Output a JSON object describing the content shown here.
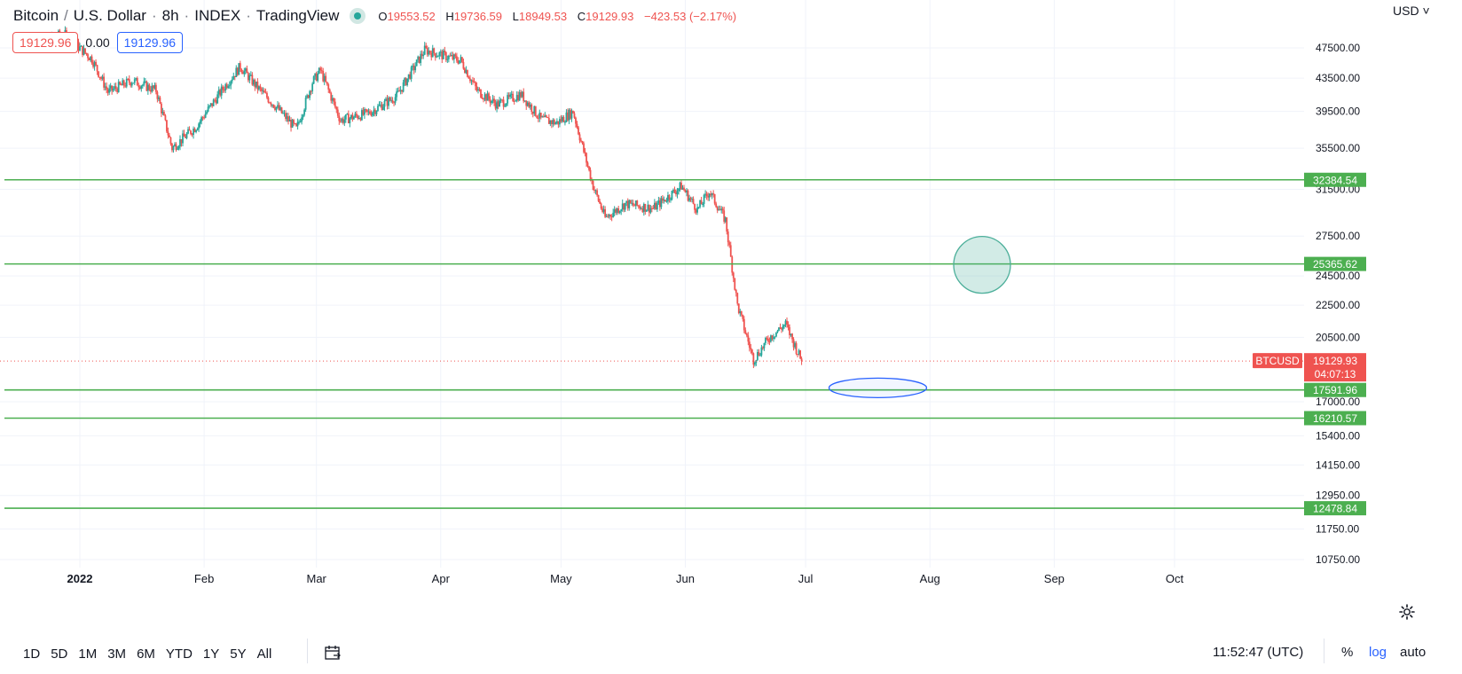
{
  "header": {
    "symbol": "Bitcoin",
    "quote": "U.S. Dollar",
    "interval": "8h",
    "exchange": "INDEX",
    "source": "TradingView",
    "open": "19553.52",
    "high": "19736.59",
    "low": "18949.53",
    "close": "19129.93",
    "change": "−423.53 (−2.17%)"
  },
  "trade": {
    "sell": "19129.96",
    "spread": "0.00",
    "buy": "19129.96"
  },
  "currency": "USD",
  "ticker": {
    "symbol": "BTCUSD",
    "price": "19129.93",
    "countdown": "04:07:13"
  },
  "colors": {
    "up": "#26a69a",
    "down": "#ef5350",
    "hline": "#4caf50",
    "ellipse": "#2962ff",
    "circle": "#4caf9a"
  },
  "ranges": [
    "1D",
    "5D",
    "1M",
    "3M",
    "6M",
    "YTD",
    "1Y",
    "5Y",
    "All"
  ],
  "clock": "11:52:47 (UTC)",
  "scale_buttons": {
    "percent": "%",
    "log": "log",
    "auto": "auto"
  },
  "icons": {
    "calendar": "calendar-goto-icon",
    "settings": "gear-icon"
  },
  "chart_data": {
    "type": "candlestick",
    "scale": "log",
    "y_ticks": [
      47500,
      43500,
      39500,
      35500,
      31500,
      27500,
      24500,
      22500,
      20500,
      17000,
      15400,
      14150,
      12950,
      11750,
      10750
    ],
    "x_ticks": [
      "2022",
      "Feb",
      "Mar",
      "Apr",
      "May",
      "Jun",
      "Jul",
      "Aug",
      "Sep",
      "Oct"
    ],
    "x_tick_dates": [
      "2022-01-01",
      "2022-02-01",
      "2022-03-01",
      "2022-04-01",
      "2022-05-01",
      "2022-06-01",
      "2022-07-01",
      "2022-08-01",
      "2022-09-01",
      "2022-10-01"
    ],
    "horizontal_lines": [
      32384.54,
      25365.62,
      17591.96,
      16210.57,
      12478.84
    ],
    "horizontal_line_labels": [
      "32384.54",
      "25365.62",
      "17591.96",
      "16210.57",
      "12478.84"
    ],
    "anchors": [
      {
        "date": "2021-12-20",
        "price": 48000
      },
      {
        "date": "2021-12-28",
        "price": 49500
      },
      {
        "date": "2022-01-04",
        "price": 46000
      },
      {
        "date": "2022-01-08",
        "price": 41800
      },
      {
        "date": "2022-01-14",
        "price": 43200
      },
      {
        "date": "2022-01-20",
        "price": 42000
      },
      {
        "date": "2022-01-24",
        "price": 35500
      },
      {
        "date": "2022-01-30",
        "price": 37800
      },
      {
        "date": "2022-02-06",
        "price": 42400
      },
      {
        "date": "2022-02-10",
        "price": 45000
      },
      {
        "date": "2022-02-14",
        "price": 42500
      },
      {
        "date": "2022-02-19",
        "price": 40000
      },
      {
        "date": "2022-02-24",
        "price": 37500
      },
      {
        "date": "2022-02-28",
        "price": 43000
      },
      {
        "date": "2022-03-02",
        "price": 44500
      },
      {
        "date": "2022-03-07",
        "price": 38500
      },
      {
        "date": "2022-03-14",
        "price": 39300
      },
      {
        "date": "2022-03-21",
        "price": 41300
      },
      {
        "date": "2022-03-28",
        "price": 47200
      },
      {
        "date": "2022-04-02",
        "price": 46400
      },
      {
        "date": "2022-04-06",
        "price": 45800
      },
      {
        "date": "2022-04-10",
        "price": 42000
      },
      {
        "date": "2022-04-15",
        "price": 40300
      },
      {
        "date": "2022-04-21",
        "price": 41500
      },
      {
        "date": "2022-04-26",
        "price": 38600
      },
      {
        "date": "2022-04-30",
        "price": 38200
      },
      {
        "date": "2022-05-04",
        "price": 39500
      },
      {
        "date": "2022-05-06",
        "price": 36200
      },
      {
        "date": "2022-05-09",
        "price": 31800
      },
      {
        "date": "2022-05-12",
        "price": 29000
      },
      {
        "date": "2022-05-17",
        "price": 30200
      },
      {
        "date": "2022-05-24",
        "price": 29800
      },
      {
        "date": "2022-05-31",
        "price": 31800
      },
      {
        "date": "2022-06-04",
        "price": 29700
      },
      {
        "date": "2022-06-07",
        "price": 31300
      },
      {
        "date": "2022-06-11",
        "price": 28800
      },
      {
        "date": "2022-06-14",
        "price": 22500
      },
      {
        "date": "2022-06-18",
        "price": 19200
      },
      {
        "date": "2022-06-22",
        "price": 20500
      },
      {
        "date": "2022-06-26",
        "price": 21300
      },
      {
        "date": "2022-06-30",
        "price": 19130
      }
    ],
    "last_price": 19129.93,
    "annotations": [
      {
        "type": "ellipse",
        "center_date": "2022-07-19",
        "center_price": 17700
      },
      {
        "type": "circle",
        "center_date": "2022-08-14",
        "center_price": 25300
      }
    ]
  }
}
